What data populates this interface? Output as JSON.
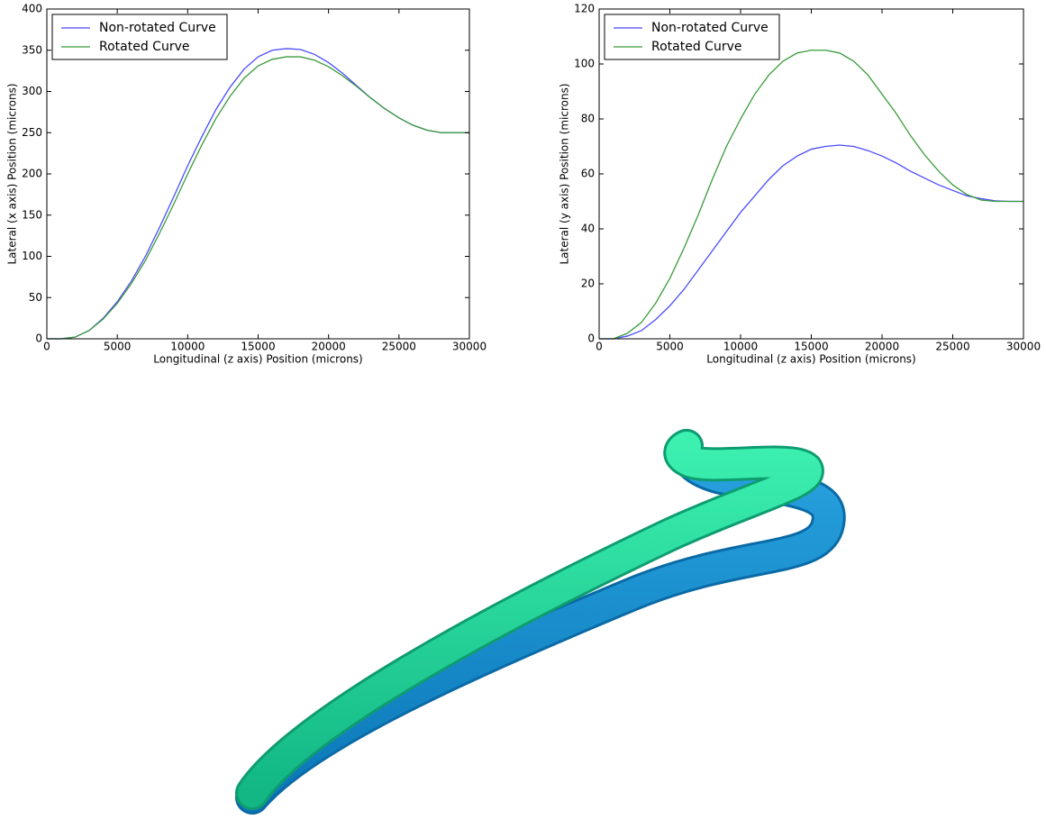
{
  "chart_data": [
    {
      "type": "line",
      "xlabel": "Longitudinal (z axis) Position (microns)",
      "ylabel": "Lateral (x axis) Position (microns)",
      "x": [
        0,
        1000,
        2000,
        3000,
        4000,
        5000,
        6000,
        7000,
        8000,
        9000,
        10000,
        11000,
        12000,
        13000,
        14000,
        15000,
        16000,
        17000,
        18000,
        19000,
        20000,
        21000,
        22000,
        23000,
        24000,
        25000,
        26000,
        27000,
        28000,
        29000,
        30000
      ],
      "series": [
        {
          "name": "Non-rotated Curve",
          "color": "#4b4bff",
          "values": [
            0,
            0,
            2,
            10,
            25,
            45,
            70,
            100,
            135,
            172,
            210,
            245,
            278,
            305,
            327,
            342,
            350,
            352,
            351,
            345,
            335,
            322,
            307,
            292,
            279,
            268,
            259,
            253,
            250,
            250,
            250
          ]
        },
        {
          "name": "Rotated Curve",
          "color": "#3a9a3a",
          "values": [
            0,
            0,
            2,
            10,
            24,
            43,
            67,
            95,
            128,
            163,
            200,
            235,
            267,
            294,
            316,
            331,
            339,
            342,
            342,
            338,
            330,
            319,
            306,
            292,
            279,
            268,
            259,
            253,
            250,
            250,
            250
          ]
        }
      ],
      "xlim": [
        0,
        30000
      ],
      "ylim": [
        0,
        400
      ],
      "xticks": [
        0,
        5000,
        10000,
        15000,
        20000,
        25000,
        30000
      ],
      "yticks": [
        0,
        50,
        100,
        150,
        200,
        250,
        300,
        350,
        400
      ],
      "legend": "upper left",
      "grid": false
    },
    {
      "type": "line",
      "xlabel": "Longitudinal (z axis) Position (microns)",
      "ylabel": "Lateral (y axis) Position (microns)",
      "x": [
        0,
        1000,
        2000,
        3000,
        4000,
        5000,
        6000,
        7000,
        8000,
        9000,
        10000,
        11000,
        12000,
        13000,
        14000,
        15000,
        16000,
        17000,
        18000,
        19000,
        20000,
        21000,
        22000,
        23000,
        24000,
        25000,
        26000,
        27000,
        28000,
        29000,
        30000
      ],
      "series": [
        {
          "name": "Non-rotated Curve",
          "color": "#4b4bff",
          "values": [
            0,
            0,
            1,
            3,
            7,
            12,
            18,
            25,
            32,
            39,
            46,
            52,
            58,
            63,
            66.5,
            69,
            70,
            70.5,
            70,
            68.5,
            66.5,
            64,
            61,
            58.5,
            56,
            54,
            52,
            51,
            50.2,
            50,
            50
          ]
        },
        {
          "name": "Rotated Curve",
          "color": "#3a9a3a",
          "values": [
            0,
            0,
            2,
            6,
            13,
            22,
            33,
            45,
            58,
            70,
            80,
            89,
            96,
            101,
            104,
            105,
            105,
            104,
            101,
            96,
            89,
            82,
            74,
            67,
            61,
            56,
            52.5,
            50.5,
            50,
            50,
            50
          ]
        }
      ],
      "xlim": [
        0,
        30000
      ],
      "ylim": [
        0,
        120
      ],
      "xticks": [
        0,
        5000,
        10000,
        15000,
        20000,
        25000,
        30000
      ],
      "yticks": [
        0,
        20,
        40,
        60,
        80,
        100,
        120
      ],
      "legend": "upper left",
      "grid": false
    }
  ]
}
